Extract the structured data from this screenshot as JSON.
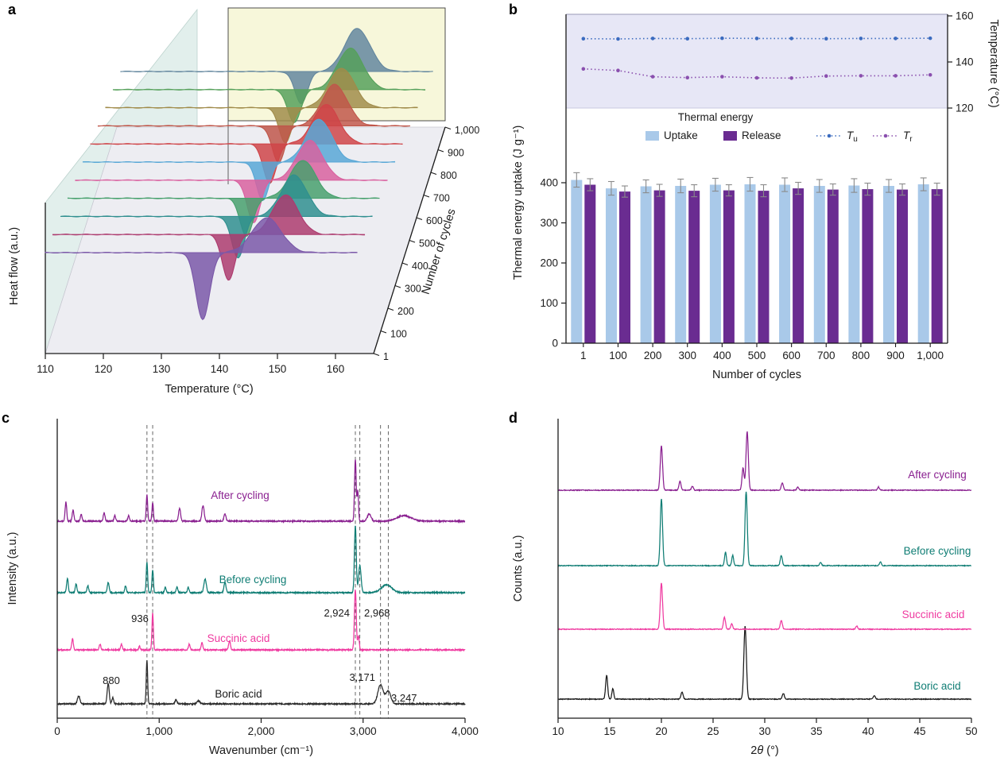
{
  "figure": {
    "background": "#ffffff"
  },
  "panels": [
    {
      "id": "a",
      "label": "a"
    },
    {
      "id": "b",
      "label": "b"
    },
    {
      "id": "c",
      "label": "c"
    },
    {
      "id": "d",
      "label": "d"
    }
  ],
  "chart_data": [
    {
      "panel": "a",
      "type": "line",
      "variant": "3d-waterfall-dsc",
      "xlabel": "Temperature (°C)",
      "ylabel": "Heat flow (a.u.)",
      "zlabel": "Number of cycles",
      "xlim": [
        110,
        166
      ],
      "x_ticks": [
        {
          "v": 110,
          "label": "110"
        },
        {
          "v": 120,
          "label": "120"
        },
        {
          "v": 130,
          "label": "130"
        },
        {
          "v": 140,
          "label": "140"
        },
        {
          "v": 150,
          "label": "150"
        },
        {
          "v": 160,
          "label": "160"
        }
      ],
      "wall_color": "#e2efec",
      "floor_color": "#ededf2",
      "highlight_color": "#f7f7da",
      "cycles": [
        {
          "label": "1",
          "color": "#7a57a8",
          "dip_center": 138.3,
          "dip_depth": 84,
          "dip_width": 1.25,
          "peak_center": 149.8,
          "peak_height": 44,
          "peak_width": 2.6
        },
        {
          "label": "100",
          "color": "#ad3a6e",
          "dip_center": 141.6,
          "dip_depth": 58,
          "peak_center": 151.8,
          "peak_height": 50
        },
        {
          "label": "200",
          "color": "#2f8f8f",
          "dip_center": 141.9,
          "dip_depth": 52,
          "peak_center": 152.0,
          "peak_height": 52
        },
        {
          "label": "300",
          "color": "#46a06c",
          "dip_center": 142.1,
          "dip_depth": 48,
          "peak_center": 152.2,
          "peak_height": 48
        },
        {
          "label": "400",
          "color": "#d9609f",
          "dip_center": 142.0,
          "dip_depth": 54,
          "peak_center": 152.1,
          "peak_height": 50
        },
        {
          "label": "500",
          "color": "#57a7d6",
          "dip_center": 142.3,
          "dip_depth": 48,
          "peak_center": 152.4,
          "peak_height": 54
        },
        {
          "label": "600",
          "color": "#cf4448",
          "dip_center": 142.2,
          "dip_depth": 50,
          "peak_center": 152.3,
          "peak_height": 50
        },
        {
          "label": "700",
          "color": "#c0564a",
          "dip_center": 142.4,
          "dip_depth": 46,
          "peak_center": 152.5,
          "peak_height": 52
        },
        {
          "label": "800",
          "color": "#a08b4a",
          "dip_center": 142.3,
          "dip_depth": 44,
          "peak_center": 152.4,
          "peak_height": 50
        },
        {
          "label": "900",
          "color": "#55a05a",
          "dip_center": 142.5,
          "dip_depth": 42,
          "peak_center": 152.6,
          "peak_height": 52
        },
        {
          "label": "1,000",
          "color": "#62869e",
          "dip_center": 142.4,
          "dip_depth": 40,
          "peak_center": 152.5,
          "peak_height": 54
        }
      ]
    },
    {
      "panel": "b",
      "type": "bar",
      "xlabel": "Number of cycles",
      "ylabel": "Thermal energy uptake (J g⁻¹)",
      "y2label": "Temperature (°C)",
      "categories": [
        "1",
        "100",
        "200",
        "300",
        "400",
        "500",
        "600",
        "700",
        "800",
        "900",
        "1,000"
      ],
      "ylim": [
        0,
        400
      ],
      "y_ticks": [
        {
          "v": 0,
          "label": "0"
        },
        {
          "v": 100,
          "label": "100"
        },
        {
          "v": 200,
          "label": "200"
        },
        {
          "v": 300,
          "label": "300"
        },
        {
          "v": 400,
          "label": "400"
        }
      ],
      "y2lim": [
        120,
        160
      ],
      "y2_ticks": [
        {
          "v": 120,
          "label": "120"
        },
        {
          "v": 140,
          "label": "140"
        },
        {
          "v": 160,
          "label": "160"
        }
      ],
      "band_color": "#e7e7f6",
      "series": [
        {
          "name": "Uptake",
          "color": "#a9c9e9",
          "values": [
            407,
            386,
            391,
            392,
            395,
            396,
            395,
            392,
            393,
            392,
            396
          ],
          "errors": [
            18,
            17,
            16,
            17,
            16,
            17,
            17,
            16,
            17,
            16,
            16
          ]
        },
        {
          "name": "Release",
          "color": "#6a2c91",
          "values": [
            395,
            378,
            381,
            380,
            381,
            380,
            386,
            383,
            384,
            383,
            384
          ],
          "errors": [
            15,
            14,
            15,
            15,
            14,
            15,
            15,
            14,
            15,
            14,
            15
          ]
        }
      ],
      "temp_series": [
        {
          "name": "Tu",
          "base": "T",
          "sub": "u",
          "color": "#3b6bbf",
          "values": [
            150.1,
            150.0,
            150.2,
            150.1,
            150.3,
            150.2,
            150.2,
            150.1,
            150.2,
            150.2,
            150.3
          ],
          "errors": [
            0.5,
            0.4,
            0.5,
            0.4,
            0.5,
            0.4,
            0.5,
            0.4,
            0.5,
            0.4,
            0.5
          ]
        },
        {
          "name": "Tr",
          "base": "T",
          "sub": "r",
          "color": "#8a4fae",
          "values": [
            137.0,
            136.3,
            133.6,
            133.2,
            133.6,
            133.1,
            133.0,
            133.9,
            134.0,
            134.0,
            134.4
          ],
          "errors": [
            0.6,
            0.5,
            0.6,
            0.5,
            0.6,
            0.5,
            0.6,
            0.5,
            0.6,
            0.5,
            0.6
          ]
        }
      ],
      "legend": {
        "title": "Thermal energy",
        "uptake": "Uptake",
        "release": "Release"
      }
    },
    {
      "panel": "c",
      "type": "line",
      "variant": "spectra",
      "xlabel": "Wavenumber (cm⁻¹)",
      "ylabel": "Intensity (a.u.)",
      "xlim": [
        0,
        4000
      ],
      "x_ticks": [
        {
          "v": 0,
          "label": "0"
        },
        {
          "v": 1000,
          "label": "1,000"
        },
        {
          "v": 2000,
          "label": "2,000"
        },
        {
          "v": 3000,
          "label": "3,000"
        },
        {
          "v": 4000,
          "label": "4,000"
        }
      ],
      "dashed_lines": [
        880,
        936,
        2924,
        2968,
        3171,
        3247
      ],
      "traces": [
        {
          "name": "Boric acid",
          "color": "#2b2b2b",
          "label_color": "#1a1a1a",
          "peaks": [
            [
              210,
              10,
              12
            ],
            [
              500,
              26,
              10
            ],
            [
              545,
              8,
              8
            ],
            [
              880,
              55,
              7
            ],
            [
              1165,
              5,
              10
            ],
            [
              1385,
              4,
              14
            ],
            [
              3171,
              24,
              26
            ],
            [
              3247,
              16,
              24
            ]
          ]
        },
        {
          "name": "Succinic acid",
          "color": "#ef3aa0",
          "label_color": "#ef3aa0",
          "peaks": [
            [
              150,
              14,
              8
            ],
            [
              420,
              7,
              8
            ],
            [
              630,
              7,
              8
            ],
            [
              806,
              5,
              6
            ],
            [
              936,
              46,
              7
            ],
            [
              1295,
              7,
              8
            ],
            [
              1420,
              9,
              8
            ],
            [
              1690,
              11,
              9
            ],
            [
              2924,
              76,
              9
            ],
            [
              2955,
              18,
              7
            ]
          ]
        },
        {
          "name": "Before cycling",
          "color": "#0f7d74",
          "label_color": "#0f7d74",
          "peaks": [
            [
              100,
              18,
              8
            ],
            [
              185,
              11,
              8
            ],
            [
              300,
              9,
              8
            ],
            [
              500,
              13,
              9
            ],
            [
              670,
              9,
              8
            ],
            [
              880,
              38,
              7
            ],
            [
              936,
              28,
              7
            ],
            [
              1060,
              7,
              8
            ],
            [
              1175,
              7,
              8
            ],
            [
              1285,
              7,
              8
            ],
            [
              1450,
              17,
              12
            ],
            [
              1645,
              13,
              10
            ],
            [
              2924,
              84,
              9
            ],
            [
              2968,
              34,
              12
            ],
            [
              3230,
              10,
              50
            ]
          ]
        },
        {
          "name": "After cycling",
          "color": "#8a2090",
          "label_color": "#8a2090",
          "peaks": [
            [
              85,
              24,
              8
            ],
            [
              155,
              14,
              8
            ],
            [
              235,
              9,
              8
            ],
            [
              460,
              11,
              8
            ],
            [
              565,
              7,
              8
            ],
            [
              700,
              7,
              8
            ],
            [
              880,
              33,
              7
            ],
            [
              936,
              23,
              7
            ],
            [
              1200,
              16,
              10
            ],
            [
              1430,
              20,
              11
            ],
            [
              1645,
              9,
              10
            ],
            [
              2924,
              78,
              8
            ],
            [
              2948,
              38,
              7
            ],
            [
              3060,
              9,
              18
            ],
            [
              3400,
              7,
              70
            ]
          ]
        }
      ],
      "peak_labels": [
        {
          "text": "880",
          "x": 880
        },
        {
          "text": "936",
          "x": 936
        },
        {
          "text": "2,924",
          "x": 2924
        },
        {
          "text": "2,968",
          "x": 2968
        },
        {
          "text": "3,171",
          "x": 3171
        },
        {
          "text": "3,247",
          "x": 3247
        }
      ]
    },
    {
      "panel": "d",
      "type": "line",
      "variant": "xrd",
      "xlabel_parts": [
        {
          "text": "2",
          "italic": false
        },
        {
          "text": "θ",
          "italic": true
        },
        {
          "text": " (°)",
          "italic": false
        }
      ],
      "ylabel": "Counts (a.u.)",
      "xlim": [
        10,
        50
      ],
      "x_ticks": [
        {
          "v": 10,
          "label": "10"
        },
        {
          "v": 15,
          "label": "15"
        },
        {
          "v": 20,
          "label": "20"
        },
        {
          "v": 25,
          "label": "25"
        },
        {
          "v": 30,
          "label": "30"
        },
        {
          "v": 35,
          "label": "35"
        },
        {
          "v": 40,
          "label": "40"
        },
        {
          "v": 45,
          "label": "45"
        },
        {
          "v": 50,
          "label": "50"
        }
      ],
      "traces": [
        {
          "name": "Boric acid",
          "color": "#1a1a1a",
          "label_color": "#0f7d74",
          "peaks": [
            [
              14.7,
              30,
              0.1
            ],
            [
              15.3,
              13,
              0.09
            ],
            [
              22.0,
              9,
              0.1
            ],
            [
              28.1,
              92,
              0.12
            ],
            [
              31.8,
              7,
              0.1
            ],
            [
              40.6,
              4,
              0.1
            ]
          ]
        },
        {
          "name": "Succinic acid",
          "color": "#ef3aa0",
          "label_color": "#ef3aa0",
          "peaks": [
            [
              20.0,
              58,
              0.11
            ],
            [
              26.1,
              15,
              0.1
            ],
            [
              26.8,
              7,
              0.09
            ],
            [
              31.6,
              11,
              0.1
            ],
            [
              38.9,
              4,
              0.09
            ]
          ]
        },
        {
          "name": "Before cycling",
          "color": "#0f7d74",
          "label_color": "#0f7d74",
          "peaks": [
            [
              20.0,
              84,
              0.11
            ],
            [
              26.2,
              17,
              0.09
            ],
            [
              26.9,
              13,
              0.09
            ],
            [
              28.2,
              93,
              0.11
            ],
            [
              31.6,
              13,
              0.1
            ],
            [
              35.4,
              4,
              0.09
            ],
            [
              41.2,
              5,
              0.09
            ]
          ]
        },
        {
          "name": "After cycling",
          "color": "#8a2090",
          "label_color": "#8a2090",
          "peaks": [
            [
              20.0,
              56,
              0.11
            ],
            [
              21.8,
              11,
              0.1
            ],
            [
              23.0,
              5,
              0.09
            ],
            [
              27.9,
              28,
              0.1
            ],
            [
              28.3,
              74,
              0.11
            ],
            [
              31.7,
              9,
              0.1
            ],
            [
              33.2,
              4,
              0.09
            ],
            [
              41.0,
              4,
              0.09
            ]
          ]
        }
      ]
    }
  ]
}
